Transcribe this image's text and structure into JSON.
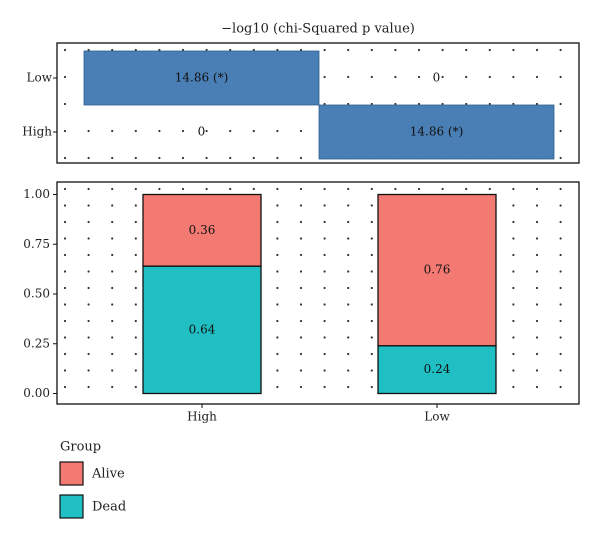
{
  "chart_data": [
    {
      "type": "heatmap",
      "title": "−log10 (chi-Squared p value)",
      "rows": [
        "Low",
        "High"
      ],
      "columns": [
        "High",
        "Low"
      ],
      "cells": [
        {
          "row": "Low",
          "col": "High",
          "value": 14.86,
          "label": "14.86 (*)",
          "highlighted": true
        },
        {
          "row": "Low",
          "col": "Low",
          "value": 0,
          "label": "0",
          "highlighted": false
        },
        {
          "row": "High",
          "col": "High",
          "value": 0,
          "label": "0",
          "highlighted": false
        },
        {
          "row": "High",
          "col": "Low",
          "value": 14.86,
          "label": "14.86 (*)",
          "highlighted": true
        }
      ],
      "highlight_color": "#4a7fb5",
      "grid": "dotted"
    },
    {
      "type": "bar",
      "stacked": true,
      "categories": [
        "High",
        "Low"
      ],
      "series": [
        {
          "name": "Dead",
          "values": [
            0.64,
            0.24
          ],
          "labels": [
            "0.64",
            "0.24"
          ],
          "color": "#1fbfc3"
        },
        {
          "name": "Alive",
          "values": [
            0.36,
            0.76
          ],
          "labels": [
            "0.36",
            "0.76"
          ],
          "color": "#f37a73"
        }
      ],
      "ylim": [
        0,
        1
      ],
      "yticks": [
        0,
        0.25,
        0.5,
        0.75,
        1
      ],
      "ytick_labels": [
        "0.00",
        "0.25",
        "0.50",
        "0.75",
        "1.00"
      ],
      "grid": "dotted",
      "legend": {
        "title": "Group",
        "placement": "bottom-left",
        "entries": [
          {
            "name": "Alive",
            "color": "#f37a73"
          },
          {
            "name": "Dead",
            "color": "#1fbfc3"
          }
        ]
      }
    }
  ]
}
